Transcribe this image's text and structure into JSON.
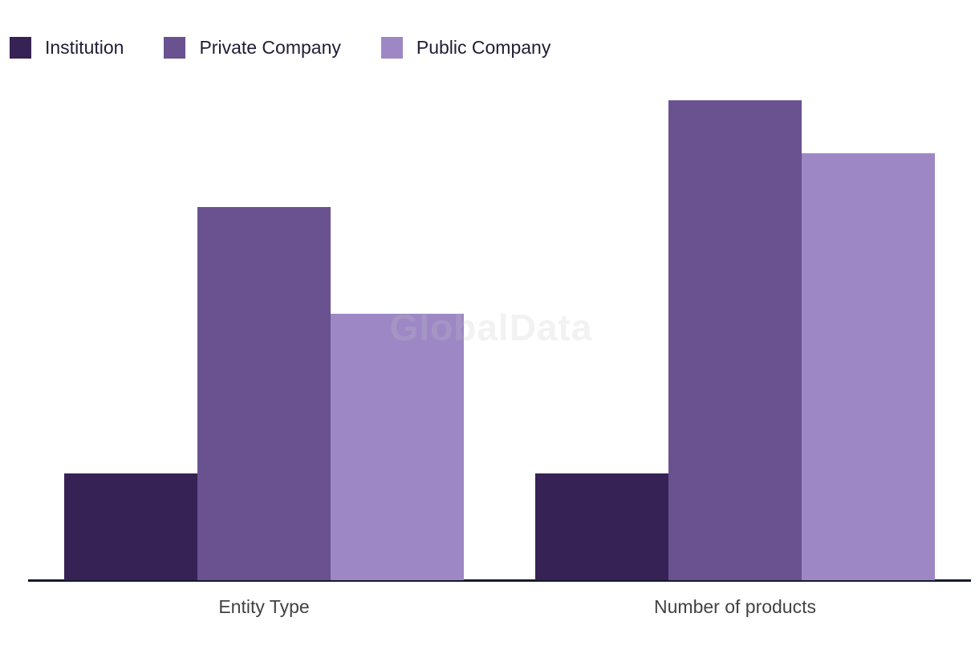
{
  "watermark": "GlobalData",
  "chart_data": {
    "type": "bar",
    "title": "",
    "xlabel": "",
    "ylabel": "",
    "categories": [
      "Entity Type",
      "Number of products"
    ],
    "series": [
      {
        "name": "Institution",
        "color": "#362254",
        "values": [
          2,
          2
        ]
      },
      {
        "name": "Private Company",
        "color": "#6a5291",
        "values": [
          7,
          9
        ]
      },
      {
        "name": "Public Company",
        "color": "#9d88c5",
        "values": [
          5,
          8
        ]
      }
    ],
    "ylim": [
      0,
      9
    ],
    "grid": false,
    "y_axis_visible": false,
    "legend_position": "top-left",
    "axis_line_color": "#161a2e",
    "category_label_color": "#424242",
    "legend_text_color": "#211d35"
  }
}
